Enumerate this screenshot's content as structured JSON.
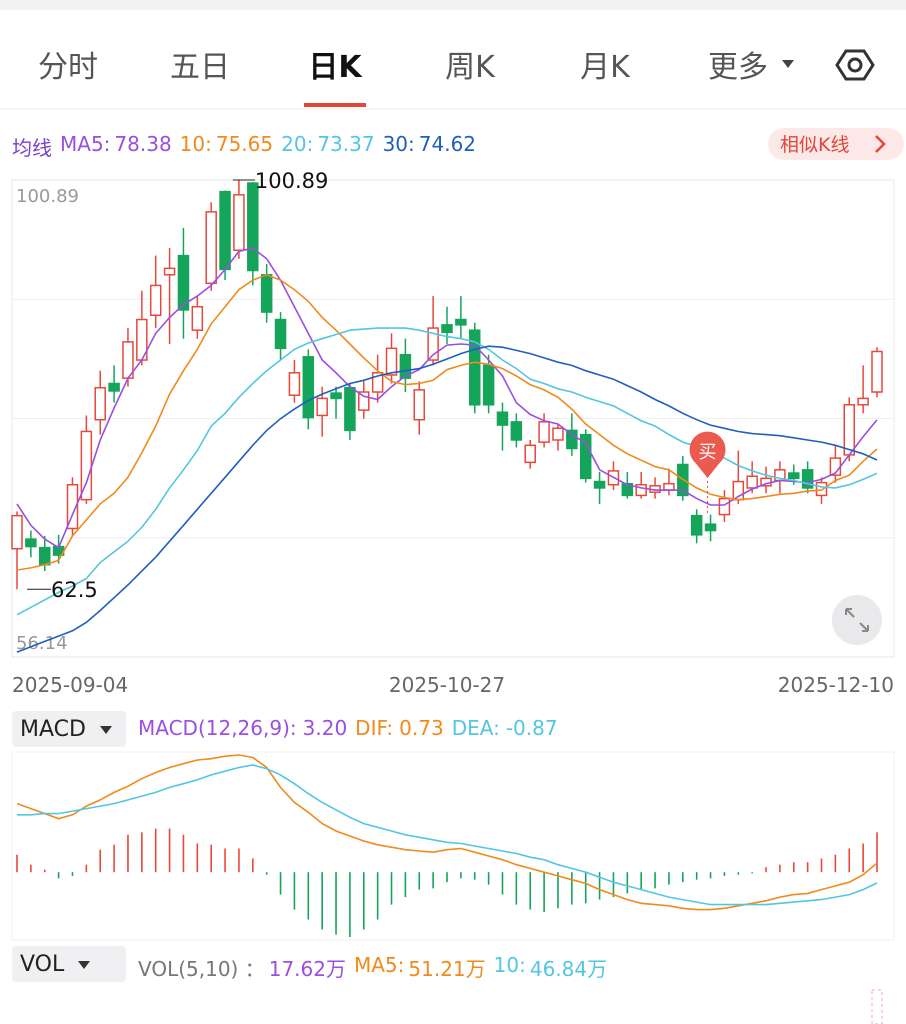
{
  "tabs": [
    "分时",
    "五日",
    "日K",
    "周K",
    "月K",
    "更多"
  ],
  "ma_title": "均线",
  "similar_button": "相似K线",
  "chart_data": {
    "type": "candlestick",
    "categories": [
      "2025-09-04",
      null,
      null,
      null,
      null,
      null,
      null,
      null,
      null,
      null,
      null,
      null,
      null,
      null,
      null,
      null,
      null,
      null,
      null,
      null,
      null,
      null,
      null,
      null,
      null,
      null,
      null,
      null,
      null,
      null,
      null,
      "2025-10-27",
      null,
      null,
      null,
      null,
      null,
      null,
      null,
      null,
      null,
      null,
      null,
      null,
      null,
      null,
      null,
      null,
      null,
      null,
      null,
      null,
      null,
      null,
      null,
      null,
      null,
      null,
      null,
      null,
      null,
      null,
      "2025-12-10"
    ],
    "open": [
      66.3,
      67.2,
      66.4,
      66.5,
      68.2,
      70.9,
      78.4,
      81.8,
      82.3,
      84.0,
      88.2,
      92.0,
      93.8,
      86.8,
      91.2,
      99.8,
      94.3,
      100.6,
      92.0,
      87.8,
      80.7,
      84.3,
      78.8,
      80.9,
      81.4,
      79.3,
      81.0,
      82.6,
      84.5,
      78.4,
      84.0,
      87.3,
      87.8,
      86.8,
      83.5,
      79.1,
      78.2,
      74.4,
      76.3,
      76.5,
      77.4,
      77.0,
      72.6,
      72.3,
      72.4,
      71.3,
      71.6,
      71.8,
      74.2,
      69.4,
      68.6,
      69.5,
      70.9,
      72.0,
      72.2,
      72.7,
      73.4,
      73.7,
      71.3,
      73.2,
      75.1,
      79.8,
      81.0
    ],
    "high": [
      69.8,
      68.0,
      67.5,
      67.6,
      73.0,
      78.8,
      83.0,
      83.5,
      87.0,
      90.5,
      93.8,
      94.5,
      96.4,
      90.0,
      98.8,
      99.9,
      100.89,
      100.7,
      93.0,
      88.5,
      84.0,
      85.0,
      81.5,
      81.5,
      81.8,
      82.0,
      84.5,
      86.5,
      86.0,
      82.0,
      90.0,
      89.0,
      90.0,
      87.5,
      84.5,
      80.0,
      79.0,
      76.5,
      79.0,
      78.0,
      79.0,
      77.5,
      73.5,
      74.5,
      73.5,
      73.5,
      73.0,
      73.8,
      75.0,
      70.0,
      69.5,
      71.8,
      75.5,
      74.5,
      74.0,
      74.5,
      74.2,
      74.5,
      73.0,
      76.0,
      80.5,
      83.5,
      85.2
    ],
    "low": [
      62.5,
      65.5,
      64.2,
      64.9,
      67.5,
      70.5,
      77.0,
      80.0,
      81.5,
      83.5,
      87.0,
      85.5,
      86.0,
      86.0,
      90.5,
      91.5,
      93.5,
      91.0,
      87.5,
      84.0,
      80.0,
      77.5,
      76.8,
      78.5,
      76.5,
      78.5,
      80.0,
      81.8,
      81.0,
      77.0,
      83.5,
      85.5,
      86.0,
      79.0,
      79.0,
      75.5,
      75.8,
      73.8,
      75.8,
      75.5,
      75.0,
      72.5,
      70.5,
      71.8,
      71.0,
      71.0,
      71.0,
      71.3,
      70.8,
      66.8,
      67.0,
      68.8,
      70.5,
      71.5,
      71.5,
      71.5,
      72.3,
      71.5,
      70.5,
      72.5,
      74.5,
      79.0,
      80.5
    ],
    "close": [
      69.4,
      66.5,
      64.8,
      65.7,
      72.3,
      77.3,
      81.4,
      81.1,
      85.7,
      87.8,
      91.0,
      92.6,
      88.7,
      89.0,
      97.9,
      92.5,
      99.5,
      92.4,
      88.5,
      85.1,
      82.8,
      78.6,
      80.4,
      80.4,
      77.4,
      81.0,
      82.8,
      85.1,
      82.3,
      81.2,
      87.0,
      86.6,
      87.3,
      79.8,
      79.8,
      77.9,
      76.5,
      76.0,
      78.2,
      77.6,
      75.7,
      72.9,
      72.0,
      73.6,
      71.3,
      72.3,
      72.2,
      72.4,
      71.3,
      67.6,
      68.0,
      71.0,
      72.6,
      73.1,
      72.9,
      73.7,
      72.9,
      72.0,
      72.5,
      74.8,
      79.8,
      80.4,
      84.8
    ],
    "up_color": "#e8483c",
    "down_color": "#14a55a",
    "ylim": [
      56.14,
      100.89
    ],
    "yticks": [
      56.14,
      100.89
    ],
    "grid": true,
    "buy_signal": "买",
    "series": [
      {
        "name": "MA5:",
        "color": "#9a4fe0",
        "values": [
          70.5,
          68.5,
          67.2,
          66.4,
          69.5,
          72.5,
          76.5,
          79.5,
          82.3,
          84.0,
          86.5,
          88.0,
          89.2,
          90.0,
          91.0,
          92.5,
          94.2,
          94.5,
          93.5,
          91.5,
          89.0,
          86.5,
          84.0,
          82.8,
          81.5,
          80.6,
          80.3,
          81.5,
          82.5,
          83.1,
          84.5,
          85.4,
          85.5,
          85.4,
          84.0,
          82.5,
          80.0,
          78.9,
          78.3,
          78.0,
          77.0,
          76.2,
          73.7,
          73.0,
          72.3,
          72.0,
          71.8,
          71.8,
          71.8,
          71.0,
          70.4,
          70.4,
          71.2,
          71.9,
          72.4,
          72.7,
          72.6,
          72.5,
          72.8,
          73.4,
          75.1,
          76.8,
          78.38
        ]
      },
      {
        "name": "10:",
        "color": "#f08a1c",
        "values": [
          64.3,
          64.5,
          64.8,
          65.2,
          67.5,
          69.0,
          70.5,
          71.5,
          73.0,
          75.3,
          77.8,
          80.8,
          83.0,
          85.0,
          87.4,
          89.0,
          90.6,
          91.5,
          92.0,
          91.5,
          90.6,
          89.5,
          88.0,
          86.8,
          85.5,
          84.2,
          83.0,
          82.0,
          81.7,
          81.8,
          82.1,
          83.1,
          83.5,
          83.8,
          83.6,
          83.2,
          82.5,
          81.7,
          81.2,
          80.5,
          79.4,
          78.0,
          77.0,
          76.0,
          75.2,
          74.6,
          74.0,
          73.7,
          72.8,
          72.0,
          71.4,
          71.1,
          70.9,
          71.0,
          71.2,
          71.4,
          71.5,
          71.7,
          71.8,
          72.7,
          73.2,
          74.5,
          75.65
        ]
      },
      {
        "name": "20:",
        "color": "#52c6e2",
        "values": [
          60.1,
          60.8,
          61.5,
          62.2,
          62.8,
          63.5,
          65.0,
          66.0,
          67.0,
          68.3,
          70.0,
          72.0,
          73.7,
          75.5,
          77.8,
          79.0,
          80.5,
          81.8,
          83.0,
          84.0,
          85.0,
          85.6,
          86.0,
          86.4,
          86.8,
          86.9,
          87.0,
          87.0,
          87.0,
          86.8,
          86.5,
          86.2,
          86.0,
          85.7,
          85.0,
          84.0,
          83.2,
          82.2,
          81.8,
          81.3,
          81.0,
          80.5,
          80.1,
          79.7,
          79.0,
          78.3,
          77.8,
          77.0,
          76.3,
          75.9,
          75.3,
          74.8,
          74.1,
          73.6,
          73.2,
          72.9,
          72.7,
          72.4,
          72.1,
          72.0,
          72.3,
          72.8,
          73.37
        ]
      },
      {
        "name": "30:",
        "color": "#1f5fbf",
        "values": [
          56.6,
          57.1,
          57.6,
          58.1,
          58.6,
          59.4,
          60.5,
          61.7,
          62.9,
          64.2,
          65.5,
          67.0,
          68.5,
          70.0,
          71.5,
          73.0,
          74.5,
          76.0,
          77.4,
          78.5,
          79.4,
          80.2,
          80.8,
          81.3,
          81.8,
          82.1,
          82.5,
          82.8,
          83.0,
          83.2,
          83.6,
          84.1,
          84.6,
          85.0,
          85.3,
          85.2,
          84.9,
          84.6,
          84.2,
          83.8,
          83.5,
          83.0,
          82.6,
          82.2,
          81.6,
          81.0,
          80.3,
          79.7,
          79.0,
          78.4,
          77.9,
          77.6,
          77.3,
          77.1,
          77.0,
          76.9,
          76.7,
          76.5,
          76.3,
          76.0,
          75.6,
          75.2,
          74.62
        ]
      }
    ]
  },
  "macd": {
    "type": "macd",
    "selector": "MACD",
    "up_color": "#e8483c",
    "down_color": "#14a55a",
    "series": [
      {
        "name": "MACD(12,26,9):",
        "color": "#9a4fe0",
        "value_label": "3.20",
        "values": [
          1.4,
          0.6,
          0.2,
          -0.5,
          -0.3,
          0.6,
          1.8,
          2.2,
          3.0,
          3.2,
          3.5,
          3.5,
          3.0,
          2.3,
          2.2,
          1.9,
          1.9,
          1.1,
          -0.2,
          -1.8,
          -3.0,
          -3.8,
          -4.6,
          -5.0,
          -5.2,
          -4.6,
          -3.8,
          -2.6,
          -2.0,
          -1.4,
          -1.3,
          -0.8,
          -0.5,
          -0.6,
          -1.0,
          -1.8,
          -2.6,
          -3.0,
          -3.2,
          -2.9,
          -2.6,
          -2.5,
          -2.2,
          -2.0,
          -1.7,
          -1.4,
          -1.3,
          -1.0,
          -0.8,
          -0.6,
          -0.5,
          -0.3,
          -0.2,
          -0.1,
          0.4,
          0.6,
          0.8,
          0.8,
          1.1,
          1.4,
          1.9,
          2.3,
          3.2
        ]
      },
      {
        "name": "DIF:",
        "color": "#f08a1c",
        "values": [
          5.5,
          5.1,
          4.7,
          4.3,
          4.6,
          5.3,
          5.8,
          6.4,
          6.9,
          7.5,
          8.0,
          8.4,
          8.7,
          9.0,
          9.1,
          9.3,
          9.4,
          9.2,
          8.4,
          6.8,
          5.6,
          4.8,
          3.9,
          3.3,
          2.9,
          2.5,
          2.2,
          2.0,
          1.8,
          1.7,
          1.6,
          1.8,
          1.9,
          1.6,
          1.3,
          1.0,
          0.6,
          0.3,
          0.0,
          -0.3,
          -0.6,
          -0.9,
          -1.4,
          -1.8,
          -2.2,
          -2.5,
          -2.6,
          -2.7,
          -2.9,
          -3.0,
          -3.0,
          -2.9,
          -2.7,
          -2.5,
          -2.3,
          -2.0,
          -1.8,
          -1.7,
          -1.4,
          -1.1,
          -0.8,
          -0.2,
          0.73
        ]
      },
      {
        "name": "DEA:",
        "color": "#52c6e2",
        "values": [
          4.6,
          4.6,
          4.7,
          4.7,
          4.9,
          5.1,
          5.3,
          5.5,
          5.8,
          6.1,
          6.4,
          6.8,
          7.1,
          7.4,
          7.8,
          8.1,
          8.4,
          8.6,
          8.3,
          7.8,
          7.1,
          6.3,
          5.6,
          5.0,
          4.4,
          3.9,
          3.6,
          3.3,
          3.0,
          2.8,
          2.6,
          2.4,
          2.3,
          2.1,
          1.9,
          1.7,
          1.5,
          1.2,
          1.0,
          0.6,
          0.3,
          0.0,
          -0.4,
          -0.8,
          -1.1,
          -1.4,
          -1.7,
          -2.0,
          -2.2,
          -2.4,
          -2.6,
          -2.6,
          -2.6,
          -2.6,
          -2.6,
          -2.5,
          -2.4,
          -2.3,
          -2.2,
          -2.0,
          -1.8,
          -1.4,
          -0.87
        ]
      }
    ]
  },
  "vol": {
    "selector": "VOL",
    "items": [
      {
        "name": "VOL(5,10) ：",
        "value": "17.62万",
        "color": "#9a4fe0"
      },
      {
        "name": "MA5:",
        "value": "51.21万",
        "color": "#f08a1c"
      },
      {
        "name": "10:",
        "value": "46.84万",
        "color": "#52c6e2"
      }
    ]
  }
}
